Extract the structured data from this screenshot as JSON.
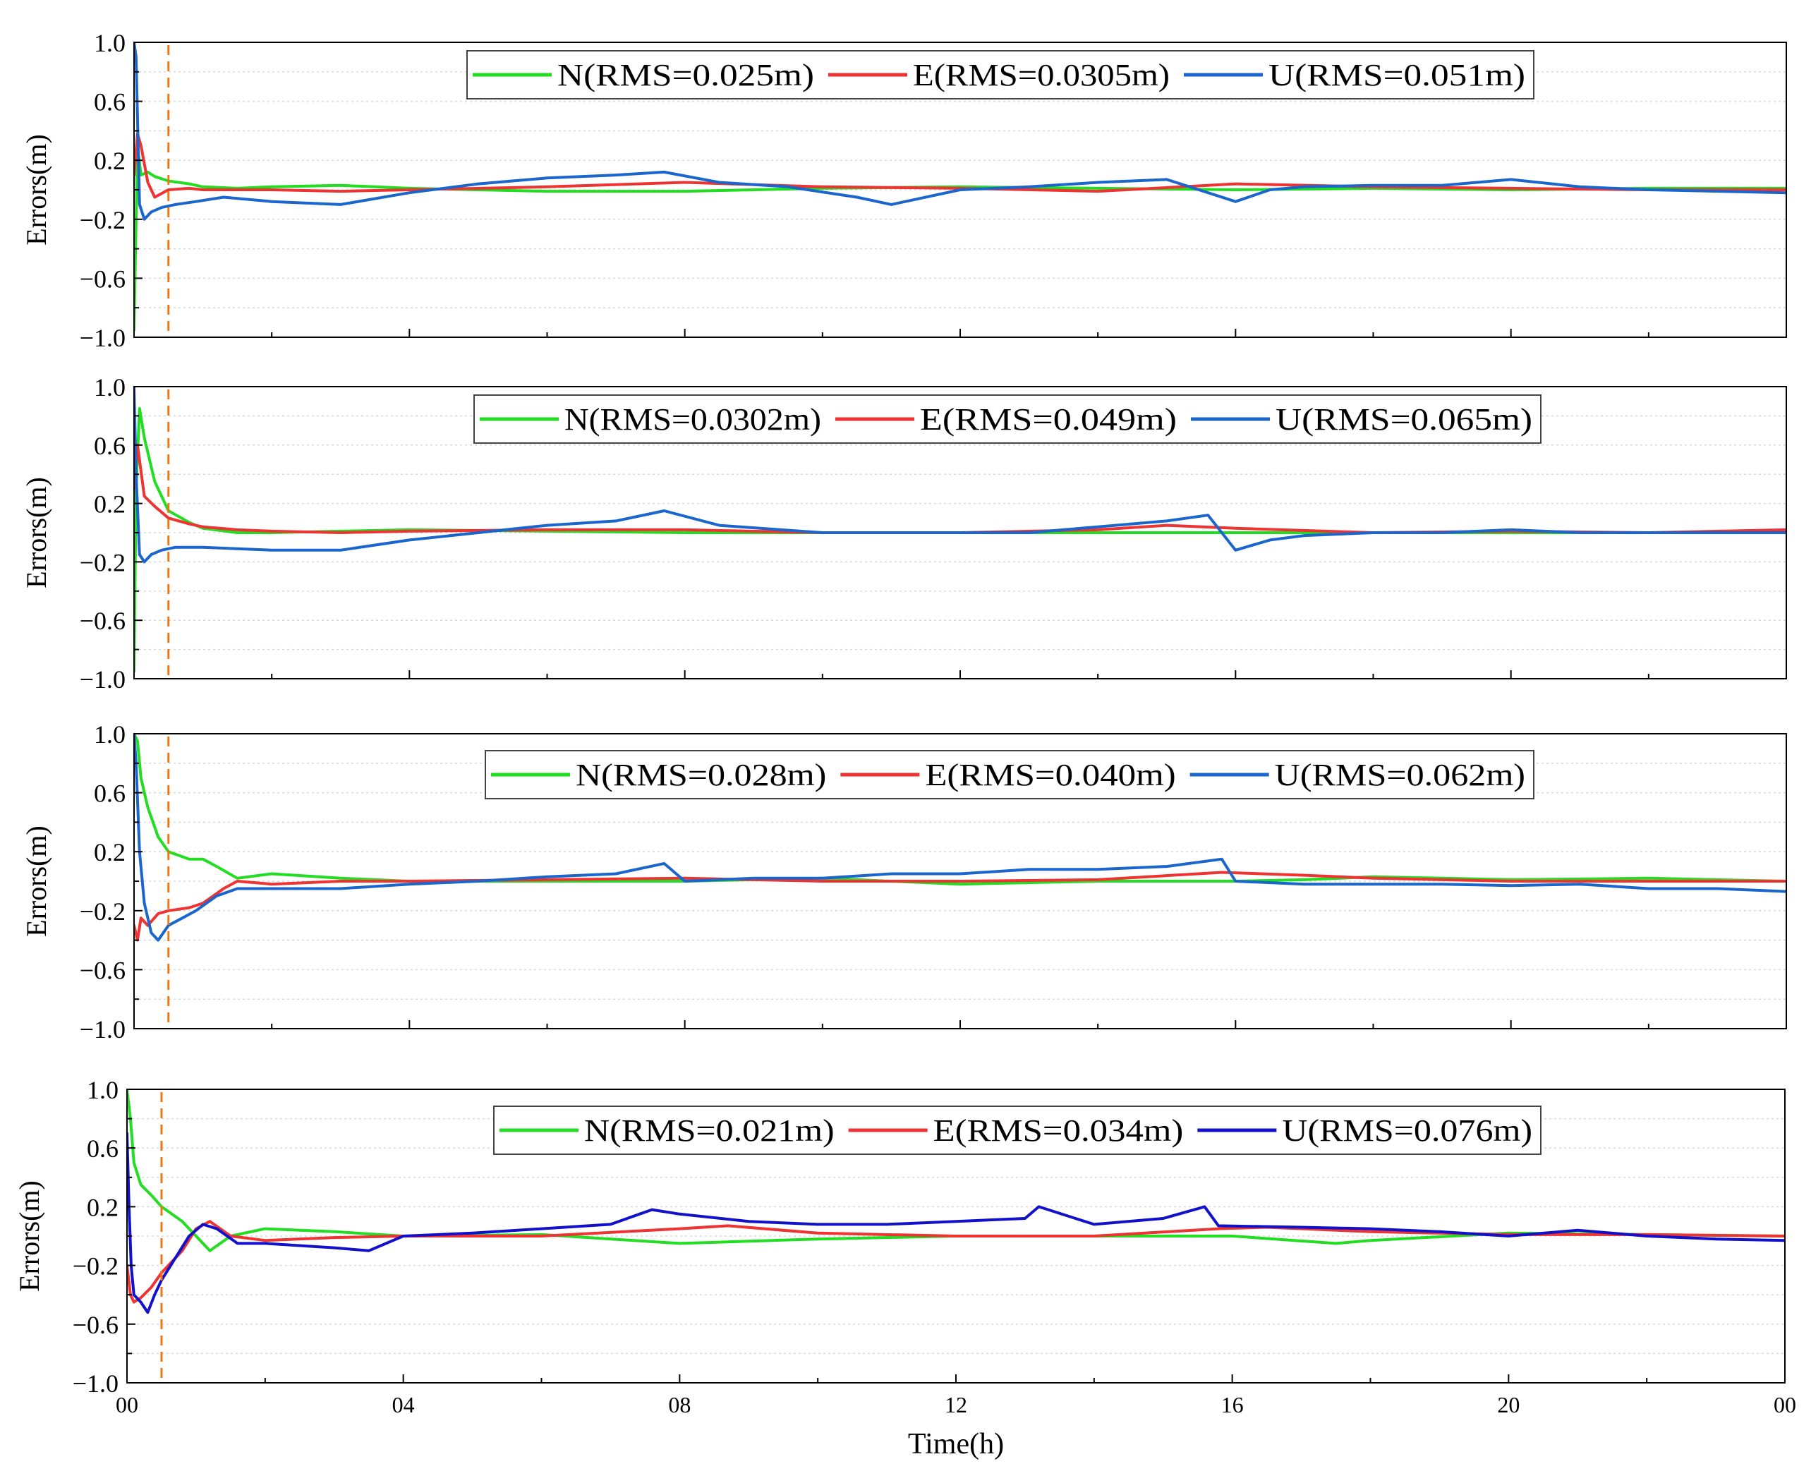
{
  "figure": {
    "xlabel": "Time(h)",
    "x_ticks": [
      "00",
      "04",
      "08",
      "12",
      "16",
      "20",
      "00"
    ],
    "x_tick_values": [
      0,
      4,
      8,
      12,
      16,
      20,
      24
    ],
    "xlim": [
      0,
      24
    ],
    "ylabel": "Errors(m)",
    "y_ticks": [
      "1.0",
      "0.6",
      "0.2",
      "−0.2",
      "−0.6",
      "−1.0"
    ],
    "y_tick_values": [
      1.0,
      0.6,
      0.2,
      -0.2,
      -0.6,
      -1.0
    ],
    "ylim": [
      -1.0,
      1.0
    ],
    "convergence_marker_hours": 0.5
  },
  "chart_data": [
    {
      "type": "line",
      "panel": 1,
      "title": "",
      "xlabel": "",
      "ylabel": "Errors(m)",
      "xlim": [
        0,
        24
      ],
      "ylim": [
        -1.0,
        1.0
      ],
      "grid": true,
      "legend_position": "top-center",
      "convergence_line_x": 0.5,
      "series": [
        {
          "name": "N",
          "label": "N(RMS=0.025m)",
          "color": "#22dd22",
          "x": [
            0,
            0.05,
            0.1,
            0.2,
            0.3,
            0.5,
            0.8,
            1.0,
            1.5,
            2,
            3,
            4,
            6,
            8,
            10,
            12,
            14,
            16,
            18,
            20,
            22,
            24
          ],
          "y": [
            -0.95,
            0.3,
            0.1,
            0.12,
            0.09,
            0.06,
            0.04,
            0.02,
            0.01,
            0.02,
            0.03,
            0.01,
            -0.01,
            -0.01,
            0.01,
            0.02,
            0.01,
            0.0,
            0.01,
            0.0,
            0.01,
            0.01
          ]
        },
        {
          "name": "E",
          "label": "E(RMS=0.0305m)",
          "color": "#ee3333",
          "x": [
            0,
            0.05,
            0.1,
            0.2,
            0.3,
            0.5,
            0.8,
            1.0,
            1.5,
            2,
            3,
            4,
            6,
            8,
            10,
            12,
            14,
            16,
            18,
            20,
            22,
            24
          ],
          "y": [
            0.1,
            0.38,
            0.3,
            0.05,
            -0.05,
            0.0,
            0.01,
            0.0,
            0.0,
            0.0,
            -0.01,
            0.0,
            0.02,
            0.05,
            0.02,
            0.01,
            -0.01,
            0.04,
            0.02,
            0.01,
            0.0,
            0.0
          ]
        },
        {
          "name": "U",
          "label": "U(RMS=0.051m)",
          "color": "#1a66cc",
          "x": [
            0,
            0.03,
            0.08,
            0.15,
            0.25,
            0.4,
            0.6,
            0.9,
            1.3,
            2,
            3,
            4,
            5,
            6,
            7,
            7.7,
            8.5,
            9.5,
            10.5,
            11,
            12,
            13,
            14,
            15,
            16,
            16.5,
            17,
            18,
            19,
            20,
            21,
            22,
            24
          ],
          "y": [
            1.0,
            0.9,
            -0.1,
            -0.2,
            -0.15,
            -0.12,
            -0.1,
            -0.08,
            -0.05,
            -0.08,
            -0.1,
            -0.02,
            0.04,
            0.08,
            0.1,
            0.12,
            0.05,
            0.02,
            -0.05,
            -0.1,
            0.0,
            0.02,
            0.05,
            0.07,
            -0.08,
            0.0,
            0.02,
            0.03,
            0.03,
            0.07,
            0.02,
            0.0,
            -0.02
          ]
        }
      ]
    },
    {
      "type": "line",
      "panel": 2,
      "title": "",
      "xlabel": "",
      "ylabel": "Errors(m)",
      "xlim": [
        0,
        24
      ],
      "ylim": [
        -1.0,
        1.0
      ],
      "grid": true,
      "legend_position": "top-center",
      "convergence_line_x": 0.5,
      "series": [
        {
          "name": "N",
          "label": "N(RMS=0.0302m)",
          "color": "#22dd22",
          "x": [
            0,
            0.03,
            0.08,
            0.15,
            0.3,
            0.5,
            0.8,
            1.0,
            1.5,
            2,
            3,
            4,
            6,
            8,
            10,
            12,
            14,
            16,
            18,
            20,
            22,
            24
          ],
          "y": [
            -0.95,
            0.3,
            0.85,
            0.65,
            0.35,
            0.15,
            0.07,
            0.03,
            0.0,
            0.0,
            0.01,
            0.02,
            0.01,
            0.0,
            0.0,
            0.0,
            0.0,
            0.0,
            0.0,
            0.0,
            0.0,
            0.0
          ]
        },
        {
          "name": "E",
          "label": "E(RMS=0.049m)",
          "color": "#ee3333",
          "x": [
            0,
            0.05,
            0.15,
            0.3,
            0.5,
            0.8,
            1.0,
            1.5,
            2,
            3,
            4,
            6,
            8,
            10,
            12,
            14,
            15,
            16,
            18,
            20,
            22,
            24
          ],
          "y": [
            0.3,
            0.6,
            0.25,
            0.18,
            0.1,
            0.06,
            0.04,
            0.02,
            0.01,
            0.0,
            0.01,
            0.02,
            0.02,
            0.0,
            0.0,
            0.02,
            0.05,
            0.03,
            0.0,
            0.01,
            0.0,
            0.02
          ]
        },
        {
          "name": "U",
          "label": "U(RMS=0.065m)",
          "color": "#1a66cc",
          "x": [
            0,
            0.03,
            0.08,
            0.15,
            0.25,
            0.4,
            0.6,
            1.0,
            2,
            3,
            4,
            5,
            6,
            7,
            7.7,
            8.5,
            10,
            11,
            12,
            13,
            14,
            15,
            15.6,
            16,
            16.5,
            17,
            18,
            19,
            20,
            21,
            22,
            24
          ],
          "y": [
            1.0,
            0.4,
            -0.15,
            -0.2,
            -0.15,
            -0.12,
            -0.1,
            -0.1,
            -0.12,
            -0.12,
            -0.05,
            0.0,
            0.05,
            0.08,
            0.15,
            0.05,
            0.0,
            0.0,
            0.0,
            0.0,
            0.04,
            0.08,
            0.12,
            -0.12,
            -0.05,
            -0.02,
            0.0,
            0.0,
            0.02,
            0.0,
            0.0,
            0.0
          ]
        }
      ]
    },
    {
      "type": "line",
      "panel": 3,
      "title": "",
      "xlabel": "",
      "ylabel": "Errors(m)",
      "xlim": [
        0,
        24
      ],
      "ylim": [
        -1.0,
        1.0
      ],
      "grid": true,
      "legend_position": "top-center",
      "convergence_line_x": 0.5,
      "series": [
        {
          "name": "N",
          "label": "N(RMS=0.028m)",
          "color": "#22dd22",
          "x": [
            0,
            0.05,
            0.1,
            0.2,
            0.35,
            0.5,
            0.8,
            1.0,
            1.2,
            1.5,
            2,
            3,
            4,
            6,
            8,
            10,
            12,
            14,
            16,
            17,
            18,
            20,
            22,
            24
          ],
          "y": [
            1.0,
            0.95,
            0.7,
            0.5,
            0.3,
            0.2,
            0.15,
            0.15,
            0.1,
            0.02,
            0.05,
            0.02,
            0.0,
            0.0,
            0.0,
            0.02,
            -0.02,
            0.0,
            0.0,
            0.01,
            0.03,
            0.01,
            0.02,
            0.0
          ]
        },
        {
          "name": "E",
          "label": "E(RMS=0.040m)",
          "color": "#ee3333",
          "x": [
            0,
            0.05,
            0.1,
            0.2,
            0.35,
            0.5,
            0.8,
            1.0,
            1.3,
            1.5,
            2,
            3,
            4,
            6,
            8,
            10,
            12,
            14,
            15.8,
            17,
            18,
            20,
            22,
            24
          ],
          "y": [
            -0.3,
            -0.4,
            -0.25,
            -0.3,
            -0.22,
            -0.2,
            -0.18,
            -0.15,
            -0.05,
            0.0,
            -0.02,
            0.0,
            0.0,
            0.01,
            0.02,
            0.0,
            0.0,
            0.01,
            0.06,
            0.04,
            0.02,
            0.0,
            0.0,
            0.0
          ]
        },
        {
          "name": "U",
          "label": "U(RMS=0.062m)",
          "color": "#1a66cc",
          "x": [
            0,
            0.03,
            0.08,
            0.15,
            0.25,
            0.35,
            0.5,
            0.7,
            0.9,
            1.2,
            1.5,
            2,
            3,
            4,
            5,
            6,
            7,
            7.7,
            8,
            9,
            10,
            11,
            12,
            13,
            14,
            15,
            15.8,
            16,
            17,
            18,
            19,
            20,
            21,
            22,
            23,
            24
          ],
          "y": [
            1.0,
            0.8,
            0.2,
            -0.15,
            -0.35,
            -0.4,
            -0.3,
            -0.25,
            -0.2,
            -0.1,
            -0.05,
            -0.05,
            -0.05,
            -0.02,
            0.0,
            0.03,
            0.05,
            0.12,
            0.0,
            0.02,
            0.02,
            0.05,
            0.05,
            0.08,
            0.08,
            0.1,
            0.15,
            0.0,
            -0.02,
            -0.02,
            -0.02,
            -0.03,
            -0.02,
            -0.05,
            -0.05,
            -0.07
          ]
        }
      ]
    },
    {
      "type": "line",
      "panel": 4,
      "title": "",
      "xlabel": "Time(h)",
      "ylabel": "Errors(m)",
      "xlim": [
        0,
        24
      ],
      "ylim": [
        -1.0,
        1.0
      ],
      "grid": true,
      "legend_position": "top-center",
      "convergence_line_x": 0.5,
      "series": [
        {
          "name": "N",
          "label": "N(RMS=0.021m)",
          "color": "#22dd22",
          "x": [
            0,
            0.05,
            0.1,
            0.2,
            0.35,
            0.5,
            0.8,
            1.0,
            1.2,
            1.5,
            2,
            3,
            4,
            6,
            8,
            10,
            12,
            14,
            16,
            17.5,
            18,
            20,
            22,
            24
          ],
          "y": [
            1.0,
            0.8,
            0.5,
            0.35,
            0.28,
            0.2,
            0.1,
            0.0,
            -0.1,
            0.0,
            0.05,
            0.03,
            0.0,
            0.01,
            -0.05,
            -0.02,
            0.0,
            0.0,
            0.0,
            -0.05,
            -0.03,
            0.02,
            0.01,
            0.0
          ]
        },
        {
          "name": "E",
          "label": "E(RMS=0.034m)",
          "color": "#ee3333",
          "x": [
            0,
            0.05,
            0.1,
            0.2,
            0.35,
            0.5,
            0.8,
            1.0,
            1.2,
            1.5,
            2,
            3,
            4,
            6,
            8,
            8.7,
            10,
            12,
            14,
            15.8,
            16.5,
            18,
            20,
            22,
            24
          ],
          "y": [
            -0.2,
            -0.4,
            -0.45,
            -0.42,
            -0.35,
            -0.25,
            -0.1,
            0.05,
            0.1,
            0.0,
            -0.03,
            -0.01,
            0.0,
            0.0,
            0.05,
            0.07,
            0.02,
            0.0,
            0.0,
            0.05,
            0.06,
            0.03,
            0.01,
            0.01,
            0.0
          ]
        },
        {
          "name": "U",
          "label": "U(RMS=0.076m)",
          "color": "#1111cc",
          "x": [
            0,
            0.03,
            0.06,
            0.1,
            0.2,
            0.3,
            0.4,
            0.5,
            0.7,
            0.9,
            1.1,
            1.3,
            1.6,
            2,
            3,
            3.5,
            4,
            5,
            6,
            7,
            7.6,
            8,
            9,
            10,
            11,
            12,
            13,
            13.2,
            14,
            15,
            15.6,
            15.8,
            17,
            18,
            19,
            20,
            21,
            22,
            23,
            24
          ],
          "y": [
            0.7,
            0.2,
            -0.2,
            -0.4,
            -0.45,
            -0.52,
            -0.4,
            -0.3,
            -0.15,
            0.0,
            0.08,
            0.05,
            -0.05,
            -0.05,
            -0.08,
            -0.1,
            0.0,
            0.02,
            0.05,
            0.08,
            0.18,
            0.15,
            0.1,
            0.08,
            0.08,
            0.1,
            0.12,
            0.2,
            0.08,
            0.12,
            0.2,
            0.07,
            0.06,
            0.05,
            0.03,
            0.0,
            0.04,
            0.0,
            -0.02,
            -0.03
          ]
        }
      ]
    }
  ]
}
